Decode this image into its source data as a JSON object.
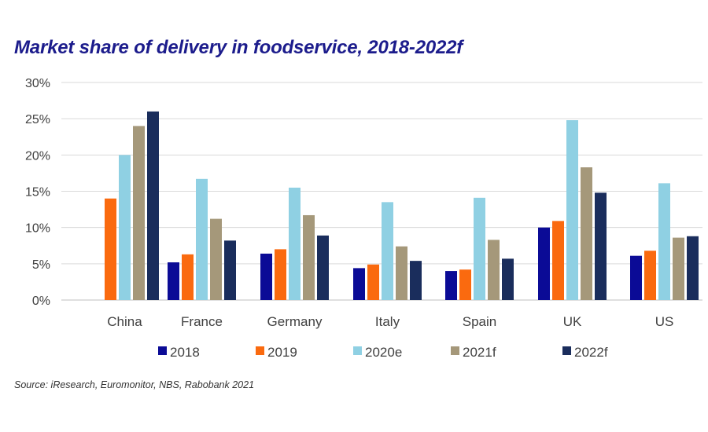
{
  "chart_data": {
    "type": "bar",
    "title": "Market share of delivery in foodservice, 2018-2022f",
    "xlabel": "",
    "ylabel": "",
    "ylim": [
      0,
      30
    ],
    "y_ticks": [
      "0%",
      "5%",
      "10%",
      "15%",
      "20%",
      "25%",
      "30%"
    ],
    "y_tick_values": [
      0,
      5,
      10,
      15,
      20,
      25,
      30
    ],
    "grid": true,
    "legend_position": "bottom",
    "categories": [
      "China",
      "France",
      "Germany",
      "Italy",
      "Spain",
      "UK",
      "US"
    ],
    "series": [
      {
        "name": "2018",
        "color": "#0b0b96",
        "values": [
          null,
          5.2,
          6.4,
          4.4,
          4.0,
          10.0,
          6.1
        ]
      },
      {
        "name": "2019",
        "color": "#fa6a0f",
        "values": [
          14.0,
          6.3,
          7.0,
          4.9,
          4.2,
          10.9,
          6.8
        ]
      },
      {
        "name": "2020e",
        "color": "#8fd0e3",
        "values": [
          20.0,
          16.7,
          15.5,
          13.5,
          14.1,
          24.8,
          16.1
        ]
      },
      {
        "name": "2021f",
        "color": "#a5987a",
        "values": [
          24.0,
          11.2,
          11.7,
          7.4,
          8.3,
          18.3,
          8.6
        ]
      },
      {
        "name": "2022f",
        "color": "#1a2d5c",
        "values": [
          26.0,
          8.2,
          8.9,
          5.4,
          5.7,
          14.8,
          8.8
        ]
      }
    ]
  },
  "source": "Source: iResearch, Euromonitor, NBS, Rabobank 2021"
}
